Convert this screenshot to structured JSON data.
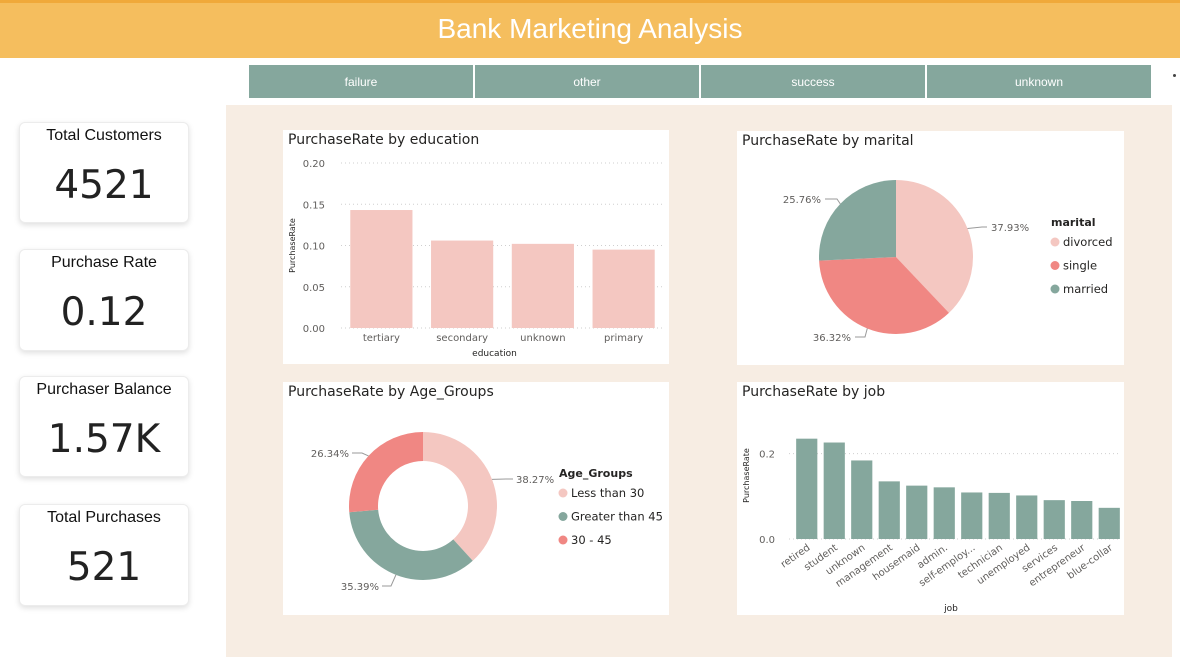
{
  "header": {
    "title": "Bank Marketing Analysis"
  },
  "slicer": {
    "items": [
      "failure",
      "other",
      "success",
      "unknown"
    ]
  },
  "kpis": [
    {
      "label": "Total Customers",
      "value": "4521"
    },
    {
      "label": "Purchase Rate",
      "value": "0.12"
    },
    {
      "label": "Purchaser Balance",
      "value": "1.57K"
    },
    {
      "label": "Total Purchases",
      "value": "521"
    }
  ],
  "colors": {
    "header": "#F5BE5E",
    "slicer": "#85A79D",
    "canvas": "#F7EDE3",
    "pink": "#F4C7C1",
    "salmon": "#F08783",
    "sage": "#85A79D"
  },
  "chart_data": [
    {
      "type": "bar",
      "title": "PurchaseRate by education",
      "xlabel": "education",
      "ylabel": "PurchaseRate",
      "categories": [
        "tertiary",
        "secondary",
        "unknown",
        "primary"
      ],
      "values": [
        0.143,
        0.106,
        0.102,
        0.095
      ],
      "ylim": [
        0,
        0.2
      ],
      "yticks": [
        "0.20",
        "0.15",
        "0.10",
        "0.05",
        "0.00"
      ],
      "color": "#F4C7C1",
      "grid": true
    },
    {
      "type": "pie",
      "title": "PurchaseRate by marital",
      "legend_title": "marital",
      "legend_position": "right",
      "labels": [
        "divorced",
        "single",
        "married"
      ],
      "values": [
        37.93,
        36.32,
        25.76
      ],
      "value_labels": [
        "37.93%",
        "36.32%",
        "25.76%"
      ],
      "colors": [
        "#F4C7C1",
        "#F08783",
        "#85A79D"
      ]
    },
    {
      "type": "pie",
      "donut": true,
      "title": "PurchaseRate by Age_Groups",
      "legend_title": "Age_Groups",
      "legend_position": "right",
      "labels": [
        "Less than 30",
        "Greater than 45",
        "30 - 45"
      ],
      "values": [
        38.27,
        35.39,
        26.34
      ],
      "value_labels": [
        "38.27%",
        "35.39%",
        "26.34%"
      ],
      "colors": [
        "#F4C7C1",
        "#85A79D",
        "#F08783"
      ]
    },
    {
      "type": "bar",
      "title": "PurchaseRate by job",
      "xlabel": "job",
      "ylabel": "PurchaseRate",
      "categories": [
        "retired",
        "student",
        "unknown",
        "management",
        "housemaid",
        "admin.",
        "self-employ...",
        "technician",
        "unemployed",
        "services",
        "entrepreneur",
        "blue-collar"
      ],
      "values": [
        0.235,
        0.226,
        0.184,
        0.135,
        0.125,
        0.121,
        0.109,
        0.108,
        0.102,
        0.091,
        0.089,
        0.073
      ],
      "ylim": [
        0,
        0.26
      ],
      "yticks": [
        "0.2",
        "0.0"
      ],
      "color": "#85A79D",
      "grid": true
    }
  ]
}
